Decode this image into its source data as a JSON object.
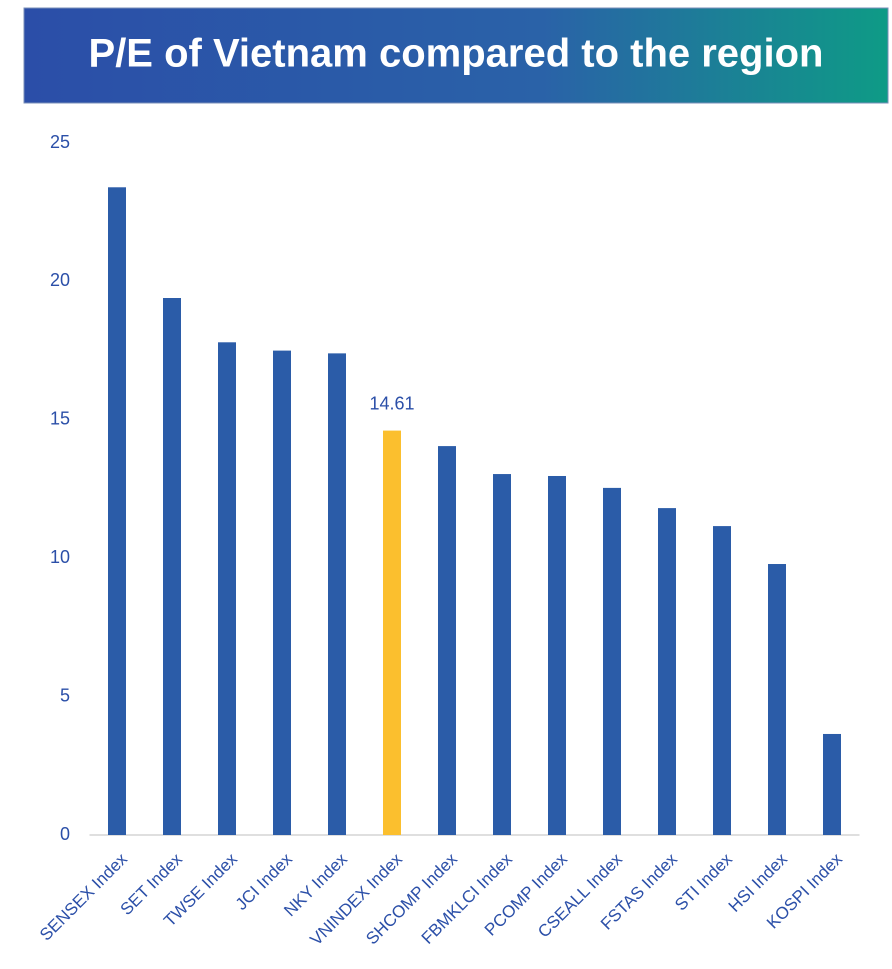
{
  "chart_data": {
    "type": "bar",
    "title": "P/E of Vietnam compared to the region",
    "categories": [
      "SENSEX Index",
      "SET Index",
      "TWSE Index",
      "JCI Index",
      "NKY Index",
      "VNINDEX Index",
      "SHCOMP Index",
      "FBMKLCI Index",
      "PCOMP Index",
      "CSEALL Index",
      "FSTAS Index",
      "STI Index",
      "HSI Index",
      "KOSPI Index"
    ],
    "values": [
      23.4,
      19.4,
      17.8,
      17.5,
      17.4,
      14.61,
      14.05,
      13.04,
      12.97,
      12.54,
      11.81,
      11.16,
      9.79,
      3.65
    ],
    "color": "#2b5ca8",
    "highlight": "VNINDEX Index",
    "highlight_color": "#fbbf2e",
    "ylim": [
      0,
      25
    ],
    "yticks": [
      0,
      5,
      10,
      15,
      20,
      25
    ],
    "grid": false
  }
}
